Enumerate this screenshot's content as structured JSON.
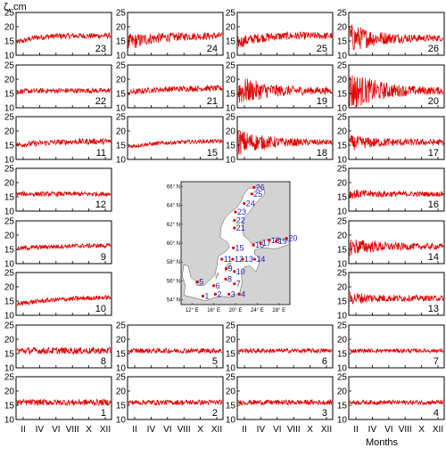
{
  "figure": {
    "y_label": "ζ, cm",
    "x_label": "Months",
    "colors": {
      "line": "#e00000",
      "axis": "#000000",
      "land": "#d3d3d3",
      "station_dot": "#e00000",
      "station_label": "#2020c0"
    }
  },
  "chart_data": {
    "type": "line",
    "ylim": [
      10,
      25
    ],
    "y_ticks": [
      "10",
      "15",
      "20",
      "25"
    ],
    "x_ticks": [
      "II",
      "IV",
      "VI",
      "VIII",
      "X",
      "XII"
    ],
    "grid": false,
    "panels": [
      {
        "station": "23",
        "mean": [
          14.5,
          16.2,
          16.7,
          16.8,
          16.8,
          16.9
        ],
        "noise": 1.0,
        "decay": 0
      },
      {
        "station": "24",
        "mean": [
          14.5,
          15.7,
          16.3,
          16.6,
          16.7,
          16.8
        ],
        "noise": 1.1,
        "decay": 2.0
      },
      {
        "station": "25",
        "mean": [
          14.5,
          16.0,
          16.6,
          16.8,
          16.8,
          16.8
        ],
        "noise": 1.2,
        "decay": 1.0
      },
      {
        "station": "26",
        "mean": [
          16.0,
          16.0,
          16.0,
          16.0,
          16.0,
          16.0
        ],
        "noise": 0.9,
        "decay": 4.5
      },
      {
        "station": "22",
        "mean": [
          15.7,
          15.9,
          16.0,
          16.0,
          16.0,
          16.0
        ],
        "noise": 0.9,
        "decay": 0
      },
      {
        "station": "21",
        "mean": [
          15.3,
          16.1,
          16.5,
          16.7,
          16.8,
          16.8
        ],
        "noise": 1.0,
        "decay": 0
      },
      {
        "station": "19",
        "mean": [
          16.0,
          16.0,
          16.0,
          16.0,
          16.0,
          16.0
        ],
        "noise": 1.0,
        "decay": 4.5
      },
      {
        "station": "20",
        "mean": [
          16.0,
          16.0,
          16.0,
          16.0,
          16.0,
          16.0
        ],
        "noise": 1.0,
        "decay": 6.5
      },
      {
        "station": "11",
        "mean": [
          15.1,
          15.6,
          16.0,
          16.2,
          16.3,
          16.3
        ],
        "noise": 1.0,
        "decay": 0
      },
      {
        "station": "15",
        "mean": [
          14.5,
          15.3,
          15.8,
          16.1,
          16.3,
          16.4
        ],
        "noise": 0.7,
        "decay": 0
      },
      {
        "station": "18",
        "mean": [
          16.0,
          16.0,
          16.0,
          16.0,
          16.0,
          16.0
        ],
        "noise": 0.8,
        "decay": 4.0
      },
      {
        "station": "17",
        "mean": [
          15.8,
          15.9,
          16.0,
          16.0,
          16.0,
          16.0
        ],
        "noise": 1.0,
        "decay": 1.8
      },
      {
        "station": "12",
        "mean": [
          16.0,
          16.0,
          16.0,
          16.0,
          16.0,
          16.0
        ],
        "noise": 0.8,
        "decay": 0
      },
      {
        "station": "16",
        "mean": [
          16.0,
          16.0,
          16.0,
          16.0,
          16.0,
          16.0
        ],
        "noise": 0.8,
        "decay": 1.0
      },
      {
        "station": "9",
        "mean": [
          15.3,
          15.7,
          16.0,
          16.2,
          16.3,
          16.3
        ],
        "noise": 0.8,
        "decay": 0
      },
      {
        "station": "14",
        "mean": [
          16.0,
          16.0,
          16.0,
          16.0,
          16.0,
          16.0
        ],
        "noise": 0.9,
        "decay": 2.5
      },
      {
        "station": "10",
        "mean": [
          14.0,
          14.8,
          15.4,
          15.8,
          16.1,
          16.3
        ],
        "noise": 0.8,
        "decay": 0
      },
      {
        "station": "13",
        "mean": [
          16.0,
          16.0,
          16.0,
          16.0,
          16.0,
          16.0
        ],
        "noise": 0.9,
        "decay": 1.5
      },
      {
        "station": "8",
        "mean": [
          16.0,
          16.0,
          16.0,
          16.0,
          16.0,
          16.0
        ],
        "noise": 1.2,
        "decay": 0
      },
      {
        "station": "5",
        "mean": [
          16.0,
          16.0,
          16.0,
          16.0,
          16.0,
          16.0
        ],
        "noise": 0.9,
        "decay": 0
      },
      {
        "station": "6",
        "mean": [
          16.0,
          16.0,
          16.0,
          16.0,
          16.0,
          16.0
        ],
        "noise": 0.8,
        "decay": 0
      },
      {
        "station": "7",
        "mean": [
          16.0,
          16.0,
          16.0,
          16.0,
          16.0,
          16.0
        ],
        "noise": 0.7,
        "decay": 0
      },
      {
        "station": "1",
        "mean": [
          16.0,
          16.0,
          16.0,
          16.0,
          16.0,
          16.0
        ],
        "noise": 1.1,
        "decay": 0
      },
      {
        "station": "2",
        "mean": [
          16.0,
          16.0,
          16.0,
          16.0,
          16.0,
          16.0
        ],
        "noise": 0.9,
        "decay": 0
      },
      {
        "station": "3",
        "mean": [
          16.0,
          16.0,
          16.0,
          16.0,
          16.0,
          16.0
        ],
        "noise": 0.9,
        "decay": 0
      },
      {
        "station": "4",
        "mean": [
          16.0,
          16.0,
          16.0,
          16.0,
          16.0,
          16.0
        ],
        "noise": 0.8,
        "decay": 0
      }
    ]
  },
  "map": {
    "lat_ticks": [
      "54° N",
      "56° N",
      "58° N",
      "60° N",
      "62° N",
      "64° N",
      "66° N"
    ],
    "lon_ticks": [
      "12° E",
      "16° E",
      "20° E",
      "24° E",
      "28° E"
    ],
    "lon_range": [
      10,
      30
    ],
    "lat_range": [
      53.5,
      66.5
    ],
    "stations": [
      {
        "id": "1",
        "lon": 14.0,
        "lat": 54.4
      },
      {
        "id": "2",
        "lon": 16.3,
        "lat": 54.6
      },
      {
        "id": "3",
        "lon": 18.8,
        "lat": 54.6
      },
      {
        "id": "4",
        "lon": 20.7,
        "lat": 54.6
      },
      {
        "id": "5",
        "lon": 13.0,
        "lat": 55.9
      },
      {
        "id": "6",
        "lon": 16.0,
        "lat": 55.5
      },
      {
        "id": "7",
        "lon": 19.8,
        "lat": 55.7
      },
      {
        "id": "8",
        "lon": 18.2,
        "lat": 56.2
      },
      {
        "id": "9",
        "lon": 18.3,
        "lat": 57.3
      },
      {
        "id": "10",
        "lon": 19.8,
        "lat": 57.0
      },
      {
        "id": "11",
        "lon": 17.5,
        "lat": 58.3
      },
      {
        "id": "12",
        "lon": 19.5,
        "lat": 58.3
      },
      {
        "id": "13",
        "lon": 21.3,
        "lat": 58.3
      },
      {
        "id": "14",
        "lon": 23.5,
        "lat": 58.3
      },
      {
        "id": "15",
        "lon": 19.6,
        "lat": 59.5
      },
      {
        "id": "16",
        "lon": 23.3,
        "lat": 59.8
      },
      {
        "id": "17",
        "lon": 24.6,
        "lat": 60.0
      },
      {
        "id": "18",
        "lon": 26.2,
        "lat": 60.3
      },
      {
        "id": "19",
        "lon": 27.5,
        "lat": 60.2
      },
      {
        "id": "20",
        "lon": 29.4,
        "lat": 60.5
      },
      {
        "id": "21",
        "lon": 19.8,
        "lat": 61.6
      },
      {
        "id": "22",
        "lon": 19.8,
        "lat": 62.4
      },
      {
        "id": "23",
        "lon": 20.0,
        "lat": 63.3
      },
      {
        "id": "24",
        "lon": 21.6,
        "lat": 64.2
      },
      {
        "id": "25",
        "lon": 23.0,
        "lat": 65.2
      },
      {
        "id": "26",
        "lon": 23.4,
        "lat": 65.9
      }
    ]
  }
}
